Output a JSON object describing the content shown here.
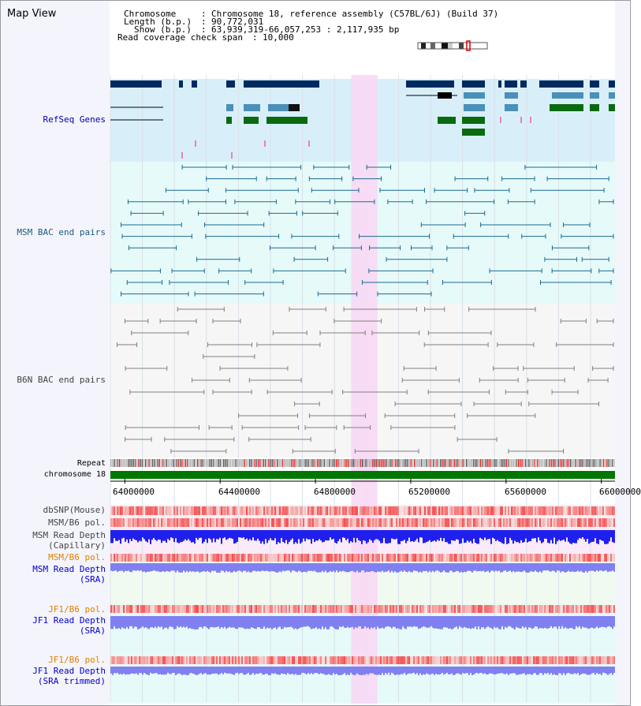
{
  "app": {
    "title": "Map View"
  },
  "info": {
    "chromosome_label": "Chromosome",
    "chromosome_value": "Chromosome 18, reference assembly (C57BL/6J) (Build 37)",
    "length_label": "Length (b.p.)",
    "length_value": "90,772,031",
    "show_label": "Show (b.p.)",
    "show_value": "63,939,319-66,057,253 : 2,117,935 bp",
    "coverage_label": "Read coverage check span",
    "coverage_value": "10,000"
  },
  "region": {
    "start": 63939319,
    "end": 66057253,
    "highlight_start": 64950000,
    "highlight_end": 65060000
  },
  "axis": {
    "ticks": [
      64000000,
      64400000,
      64800000,
      65200000,
      65600000,
      66000000
    ],
    "tick_labels": [
      "64000000",
      "64400000",
      "64800000",
      "65200000",
      "65600000",
      "66000000"
    ]
  },
  "tracks": {
    "refseq": {
      "label": "RefSeq Genes",
      "bg": "#d8effa"
    },
    "msm_bac": {
      "label": "MSM BAC end pairs",
      "bg": "#e6fafa"
    },
    "b6n_bac": {
      "label": "B6N BAC end pairs",
      "bg": "#f6f6f6"
    },
    "repeat": {
      "label": "Repeat"
    },
    "chromosome": {
      "label": "chromosome 18",
      "color": "#007700"
    },
    "dbsnp": {
      "label": "dbSNP(Mouse)"
    },
    "msm_b6_pol": {
      "label": "MSM/B6 pol."
    },
    "msm_read_cap": {
      "line1": "MSM Read Depth",
      "line2": "(Capillary)"
    },
    "msm_b6_pol2": {
      "label": "MSM/B6 pol."
    },
    "msm_read_sra": {
      "line1": "MSM Read Depth",
      "line2": "(SRA)"
    },
    "jf1_b6_pol": {
      "label": "JF1/B6 pol."
    },
    "jf1_read_sra": {
      "line1": "JF1 Read Depth",
      "line2": "(SRA)"
    },
    "jf1_b6_pol2": {
      "label": "JF1/B6 pol."
    },
    "jf1_read_trim": {
      "line1": "JF1 Read Depth",
      "line2": "(SRA trimmed)"
    }
  },
  "colors": {
    "highlight": "#f8d8f4",
    "gene_navy": "#002a60",
    "gene_blue": "#4a90b8",
    "gene_green": "#0a6a10",
    "bac_teal": "#1a6a90",
    "bac_gray": "#808080",
    "read_blue": "#2020ee",
    "read_light": "#8080f0"
  }
}
